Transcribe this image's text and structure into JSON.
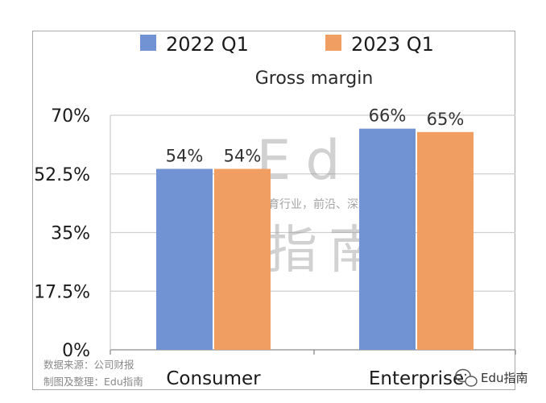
{
  "chart_data": {
    "type": "bar",
    "title": "Gross margin",
    "categories": [
      "Consumer",
      "Enterprise"
    ],
    "series": [
      {
        "name": "2022 Q1",
        "values": [
          54,
          66
        ],
        "labels": [
          "54%",
          "66%"
        ],
        "color": "#7193d4"
      },
      {
        "name": "2023 Q1",
        "values": [
          54,
          65
        ],
        "labels": [
          "54%",
          "65%"
        ],
        "color": "#f19e63"
      }
    ],
    "ylim": [
      0,
      70
    ],
    "yticks": [
      0,
      17.5,
      35,
      52.5,
      70
    ],
    "ytick_labels": [
      "0%",
      "17.5%",
      "35%",
      "52.5%",
      "70%"
    ],
    "grid": true,
    "legend_position": "top"
  },
  "watermark": {
    "brand_latin": "Edu",
    "brand_cn": "指南",
    "tagline": "教育行业，前沿、深度、独家"
  },
  "source": {
    "line1": "数据来源：公司财报",
    "line2": "制图及整理：Edu指南"
  },
  "brand_badge": {
    "text": "Edu指南",
    "icon": "wechat-icon"
  }
}
